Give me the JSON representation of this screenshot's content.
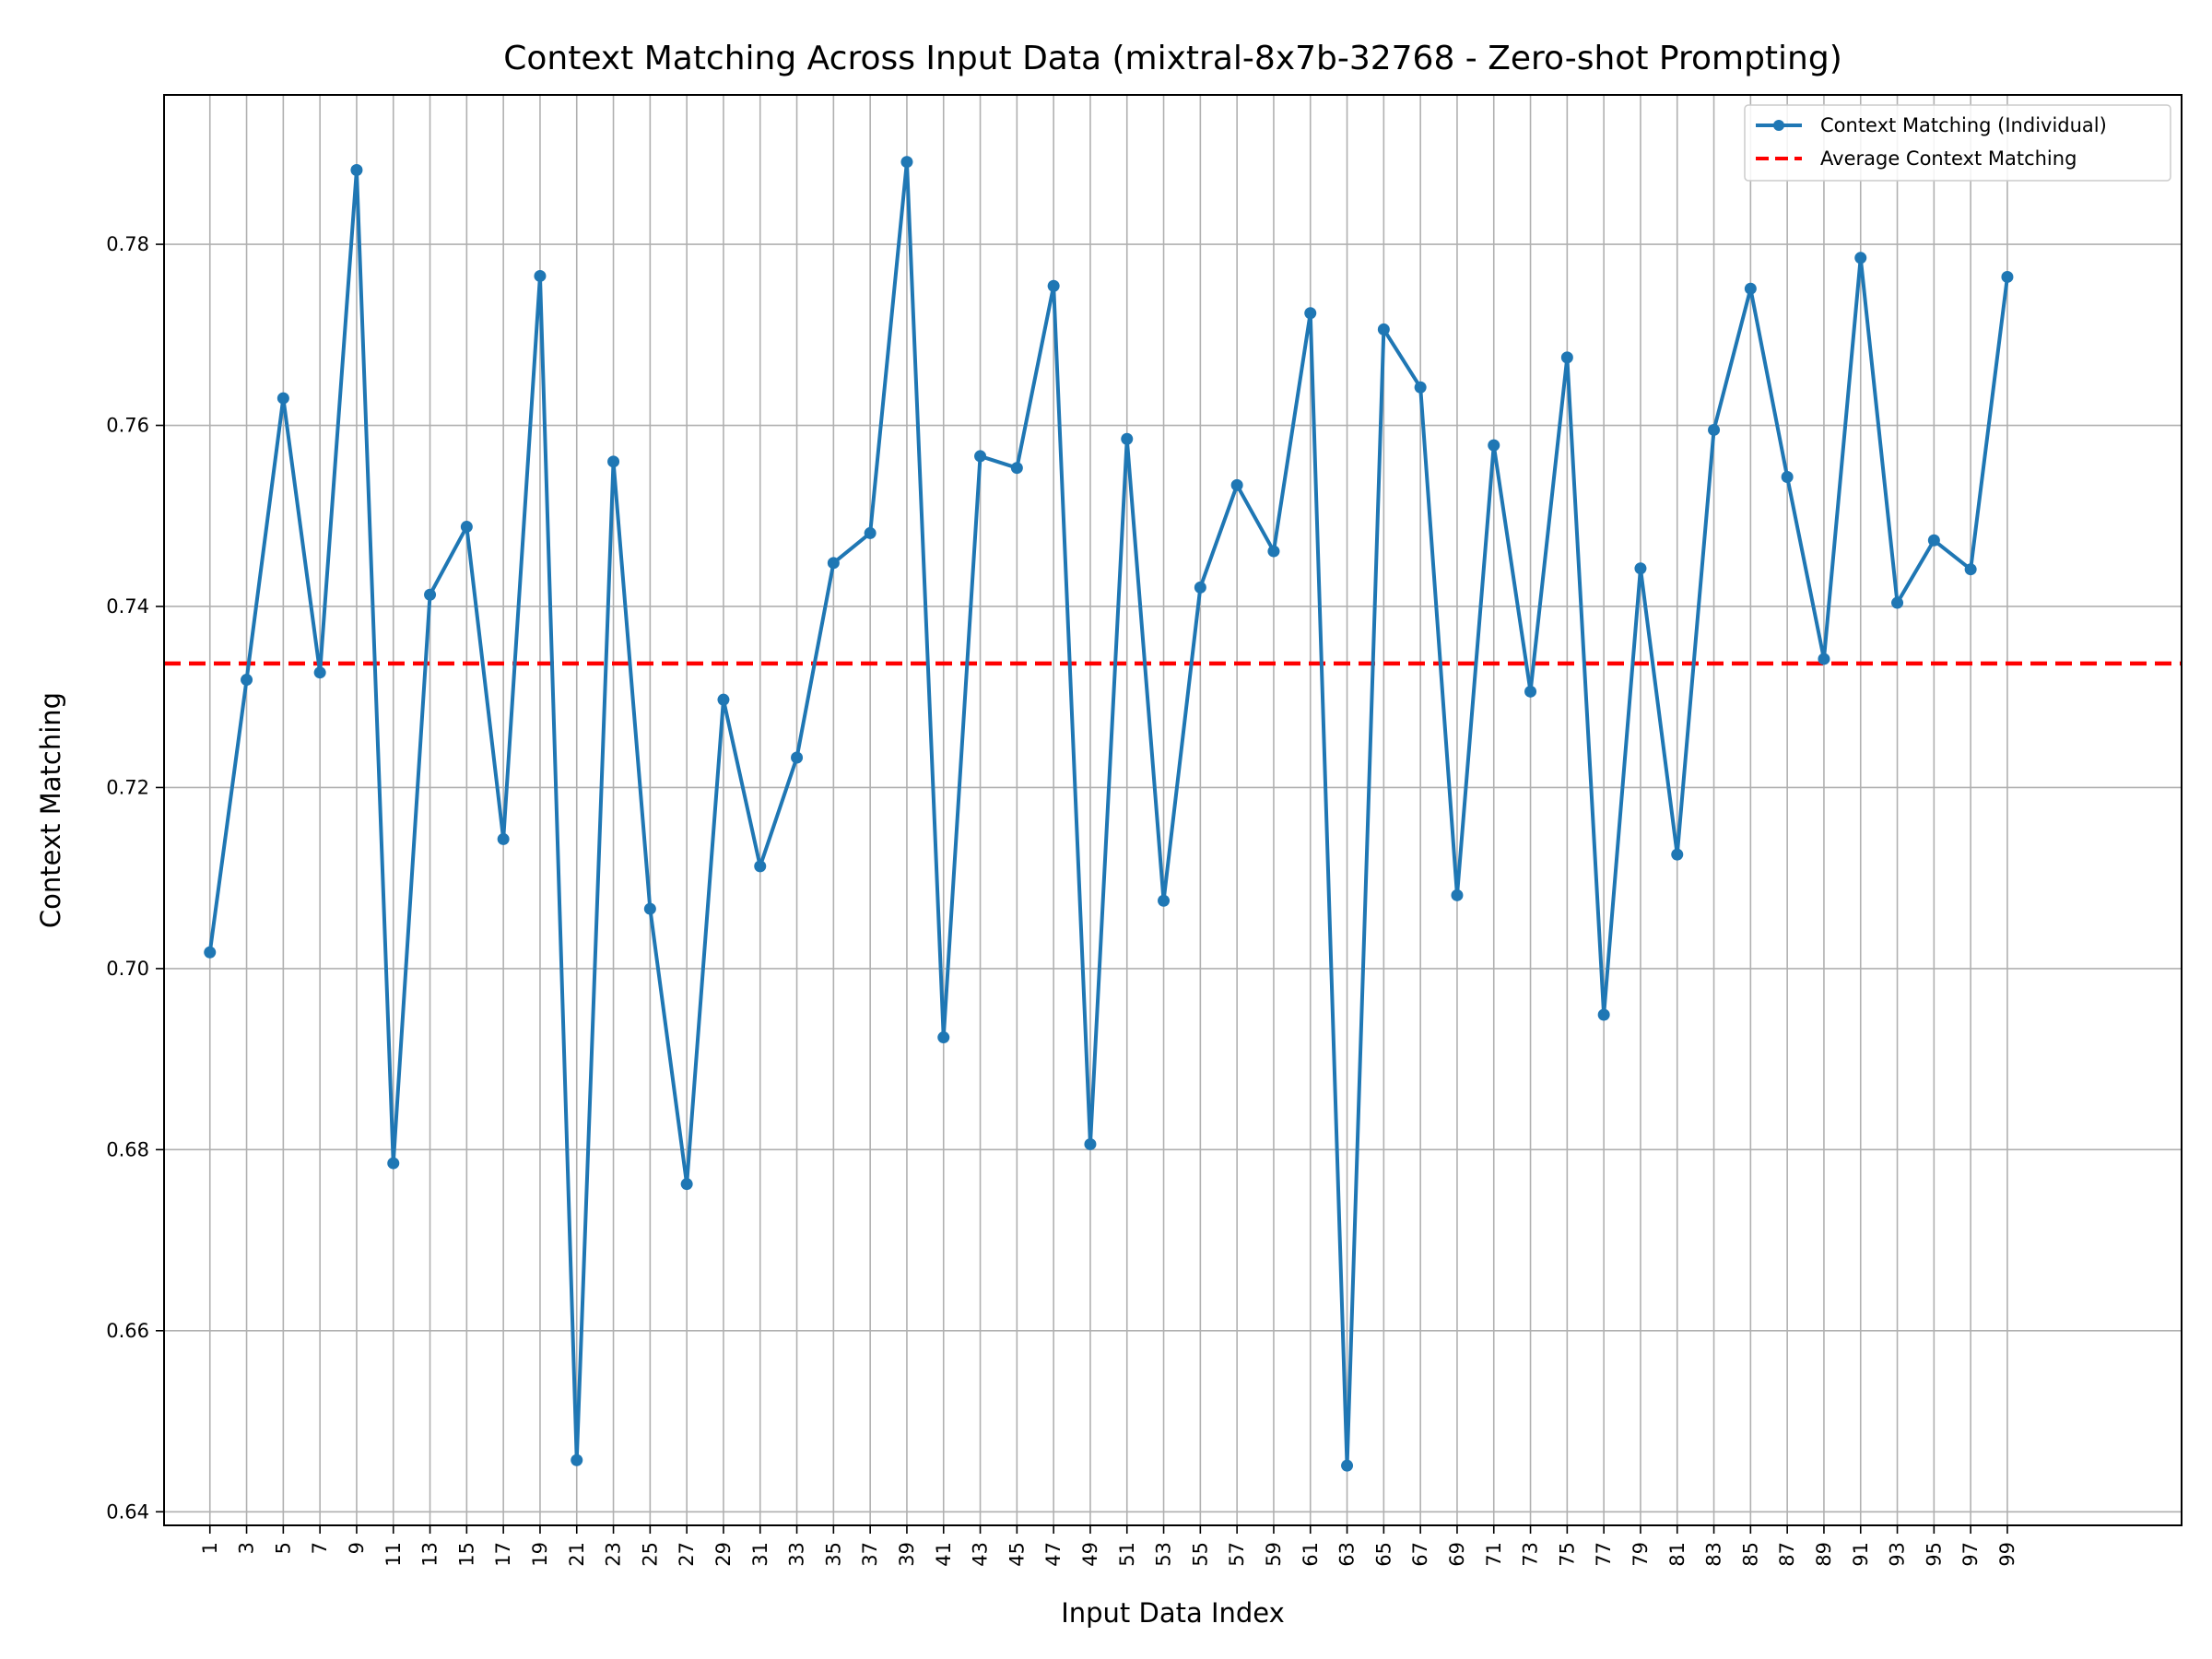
{
  "chart_data": {
    "type": "line",
    "title": "Context Matching Across Input Data (mixtral-8x7b-32768 - Zero-shot Prompting)",
    "xlabel": "Input Data Index",
    "ylabel": "Context Matching",
    "xlim": [
      -1.5,
      108.5
    ],
    "ylim": [
      0.6385,
      0.7965
    ],
    "x_ticks": [
      1,
      3,
      5,
      7,
      9,
      11,
      13,
      15,
      17,
      19,
      21,
      23,
      25,
      27,
      29,
      31,
      33,
      35,
      37,
      39,
      41,
      43,
      45,
      47,
      49,
      51,
      53,
      55,
      57,
      59,
      61,
      63,
      65,
      67,
      69,
      71,
      73,
      75,
      77,
      79,
      81,
      83,
      85,
      87,
      89,
      91,
      93,
      95,
      97,
      99
    ],
    "y_ticks": [
      0.64,
      0.66,
      0.68,
      0.7,
      0.72,
      0.74,
      0.76,
      0.78
    ],
    "y_tick_labels": [
      "0.64",
      "0.66",
      "0.68",
      "0.70",
      "0.72",
      "0.74",
      "0.76",
      "0.78"
    ],
    "grid": true,
    "legend_position": "top-right",
    "series": [
      {
        "name": "Context Matching (Individual)",
        "color": "#1f77b4",
        "style": "solid-with-markers",
        "x": [
          1,
          3,
          5,
          7,
          9,
          11,
          13,
          15,
          17,
          19,
          21,
          23,
          25,
          27,
          29,
          31,
          33,
          35,
          37,
          39,
          41,
          43,
          45,
          47,
          49,
          51,
          53,
          55,
          57,
          59,
          61,
          63,
          65,
          67,
          69,
          71,
          73,
          75,
          77,
          79,
          81,
          83,
          85,
          87,
          89,
          91,
          93,
          95,
          97,
          99
        ],
        "y": [
          0.7018,
          0.7319,
          0.763,
          0.7327,
          0.7882,
          0.6785,
          0.7413,
          0.7488,
          0.7143,
          0.7765,
          0.6457,
          0.756,
          0.7066,
          0.6762,
          0.7297,
          0.7113,
          0.7233,
          0.7448,
          0.7481,
          0.7891,
          0.6924,
          0.7566,
          0.7553,
          0.7754,
          0.6806,
          0.7585,
          0.7075,
          0.7421,
          0.7534,
          0.7461,
          0.7724,
          0.6451,
          0.7706,
          0.7642,
          0.7081,
          0.7578,
          0.7306,
          0.7675,
          0.6949,
          0.7442,
          0.7126,
          0.7595,
          0.7751,
          0.7543,
          0.7342,
          0.7785,
          0.7404,
          0.7473,
          0.7441,
          0.7764
        ]
      },
      {
        "name": "Average Context Matching",
        "color": "#ff0000",
        "style": "dashed",
        "y_constant": 0.7337
      }
    ]
  }
}
